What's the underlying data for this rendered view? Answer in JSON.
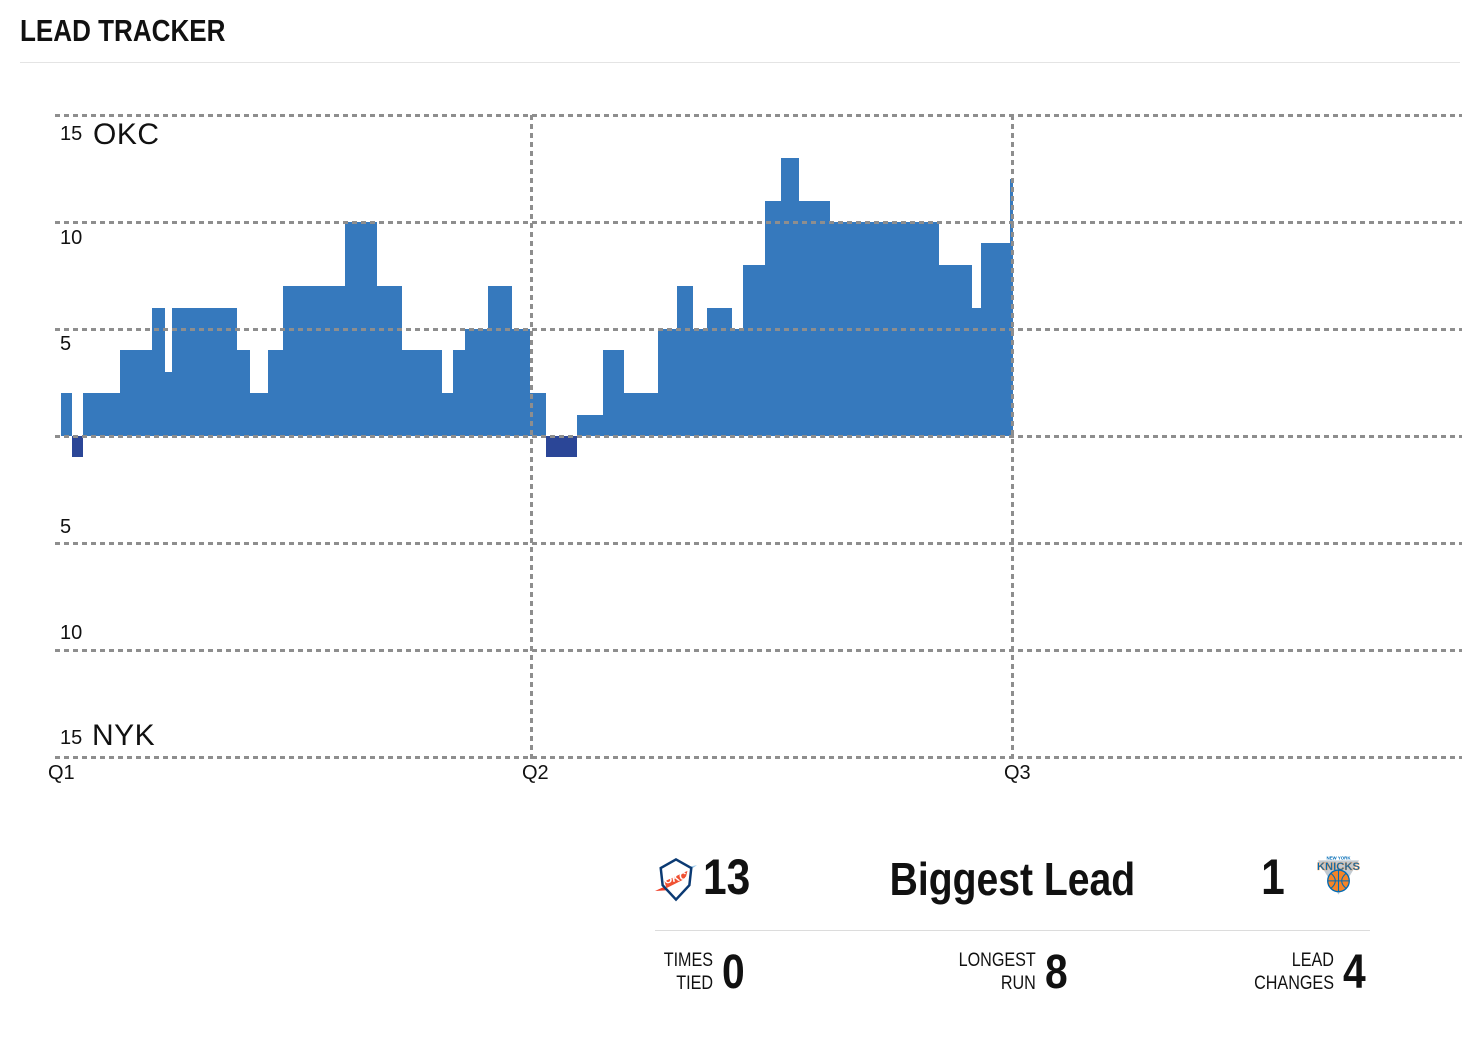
{
  "header": {
    "title": "LEAD TRACKER"
  },
  "chart_data": {
    "type": "bar",
    "title": "LEAD TRACKER",
    "teams": {
      "top": "OKC",
      "bottom": "NYK"
    },
    "ylim": [
      -15,
      15
    ],
    "grid": "dashed",
    "y_axis": {
      "top_ticks": [
        "15",
        "10",
        "5"
      ],
      "bottom_ticks": [
        "5",
        "10",
        "15"
      ]
    },
    "x_axis": {
      "labels": [
        "Q1",
        "Q2",
        "Q3"
      ]
    },
    "colors": {
      "okc_bar": "#3679BD",
      "nyk_bar": "#2B4697",
      "gridline": "#8E8E8E"
    },
    "units": "lead in points (positive = OKC lead, negative = NYK lead), t in game minutes",
    "segments": [
      {
        "t0": 0.15,
        "t1": 0.43,
        "lead": 2
      },
      {
        "t0": 0.43,
        "t1": 0.7,
        "lead": -1
      },
      {
        "t0": 0.7,
        "t1": 1.63,
        "lead": 2
      },
      {
        "t0": 1.63,
        "t1": 2.43,
        "lead": 4
      },
      {
        "t0": 2.43,
        "t1": 2.76,
        "lead": 6
      },
      {
        "t0": 2.76,
        "t1": 2.93,
        "lead": 3
      },
      {
        "t0": 2.93,
        "t1": 4.56,
        "lead": 6
      },
      {
        "t0": 4.56,
        "t1": 4.88,
        "lead": 4
      },
      {
        "t0": 4.88,
        "t1": 5.34,
        "lead": 2
      },
      {
        "t0": 5.34,
        "t1": 5.71,
        "lead": 4
      },
      {
        "t0": 5.71,
        "t1": 7.26,
        "lead": 7
      },
      {
        "t0": 7.26,
        "t1": 8.07,
        "lead": 10
      },
      {
        "t0": 8.07,
        "t1": 8.69,
        "lead": 7
      },
      {
        "t0": 8.69,
        "t1": 9.69,
        "lead": 4
      },
      {
        "t0": 9.69,
        "t1": 9.97,
        "lead": 2
      },
      {
        "t0": 9.97,
        "t1": 10.27,
        "lead": 4
      },
      {
        "t0": 10.27,
        "t1": 10.85,
        "lead": 5
      },
      {
        "t0": 10.85,
        "t1": 11.45,
        "lead": 7
      },
      {
        "t0": 11.45,
        "t1": 11.9,
        "lead": 5
      },
      {
        "t0": 11.9,
        "t1": 12.3,
        "lead": 2
      },
      {
        "t0": 12.3,
        "t1": 13.08,
        "lead": -1
      },
      {
        "t0": 13.08,
        "t1": 13.73,
        "lead": 1
      },
      {
        "t0": 13.73,
        "t1": 14.25,
        "lead": 4
      },
      {
        "t0": 14.25,
        "t1": 15.1,
        "lead": 2
      },
      {
        "t0": 15.1,
        "t1": 15.58,
        "lead": 5
      },
      {
        "t0": 15.58,
        "t1": 15.98,
        "lead": 7
      },
      {
        "t0": 15.98,
        "t1": 16.33,
        "lead": 5
      },
      {
        "t0": 16.33,
        "t1": 16.96,
        "lead": 6
      },
      {
        "t0": 16.96,
        "t1": 17.23,
        "lead": 5
      },
      {
        "t0": 17.23,
        "t1": 17.78,
        "lead": 8
      },
      {
        "t0": 17.78,
        "t1": 18.19,
        "lead": 11
      },
      {
        "t0": 18.19,
        "t1": 18.64,
        "lead": 13
      },
      {
        "t0": 18.64,
        "t1": 19.41,
        "lead": 11
      },
      {
        "t0": 19.41,
        "t1": 22.14,
        "lead": 10
      },
      {
        "t0": 22.14,
        "t1": 22.97,
        "lead": 8
      },
      {
        "t0": 22.97,
        "t1": 23.2,
        "lead": 6
      },
      {
        "t0": 23.2,
        "t1": 23.92,
        "lead": 9
      },
      {
        "t0": 23.92,
        "t1": 24.0,
        "lead": 12
      }
    ]
  },
  "stats": {
    "biggest_lead": {
      "title": "Biggest Lead",
      "okc": "13",
      "nyk": "1"
    },
    "items": [
      {
        "label": [
          "TIMES",
          "TIED"
        ],
        "value": "0"
      },
      {
        "label": [
          "LONGEST",
          "RUN"
        ],
        "value": "8"
      },
      {
        "label": [
          "LEAD",
          "CHANGES"
        ],
        "value": "4"
      }
    ]
  },
  "icons": {
    "okc_logo": "okc-thunder-logo",
    "nyk_logo": "ny-knicks-logo",
    "okc_text": "OKC",
    "nyk_text": "KNICKS",
    "nyk_top_text": "NEW YORK"
  }
}
